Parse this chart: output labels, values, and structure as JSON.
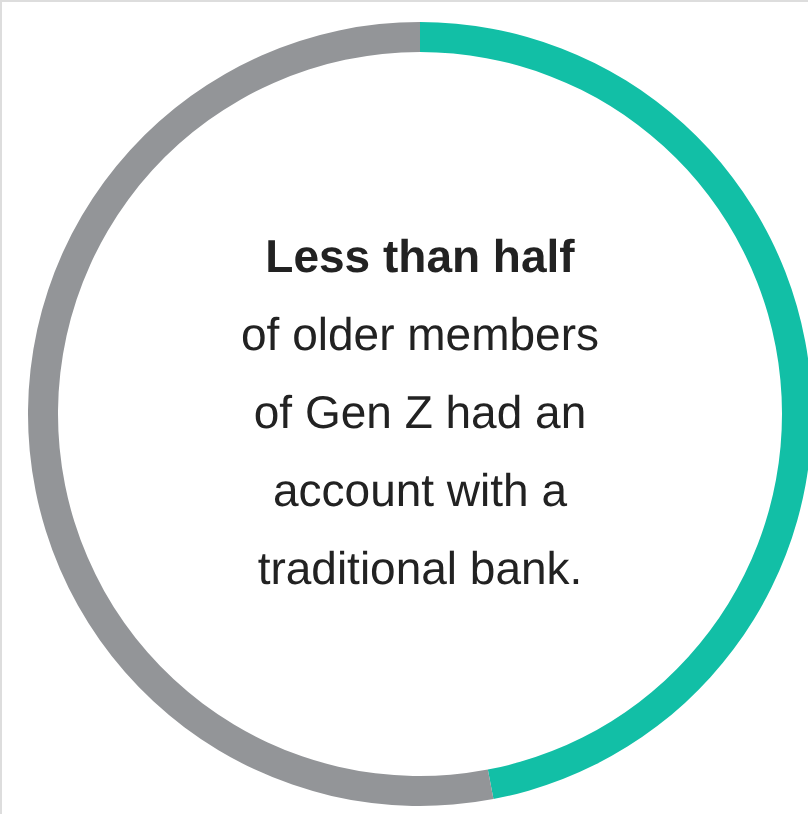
{
  "chart_data": {
    "type": "donut",
    "categories": [
      null,
      null
    ],
    "values": [
      47,
      53
    ],
    "colors": [
      "#12bfa6",
      "#939598"
    ],
    "annotations": [
      "Less than half",
      "of older members of Gen Z had an account with a traditional bank."
    ]
  }
}
